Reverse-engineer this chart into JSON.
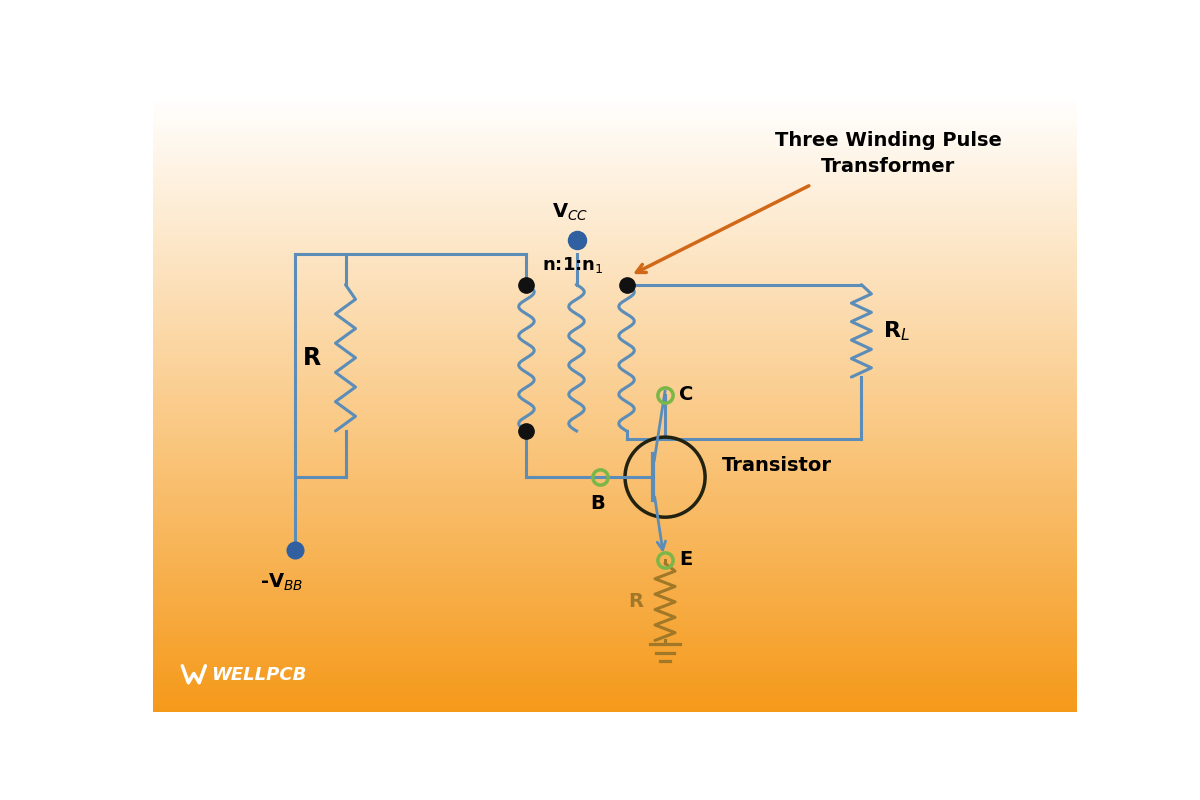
{
  "circuit_color": "#5b8db8",
  "transistor_circle_color": "#222211",
  "green_node": "#7ab648",
  "black_node": "#111111",
  "blue_node": "#3060a0",
  "orange_arrow": "#d06818",
  "resistor_emitter_color": "#a07828",
  "title_line1": "Three Winding Pulse",
  "title_line2": "Transformer",
  "vcc_label": "V$_{CC}$",
  "vbb_label": "-V$_{BB}$",
  "n_label": "n:1:n$_1$",
  "rl_label": "R$_L$",
  "r_label_left": "R",
  "r_label_emitter": "R",
  "transistor_label": "Transistor",
  "c_label": "C",
  "b_label": "B",
  "e_label": "E",
  "wellpcb_text": "WELLPCB"
}
